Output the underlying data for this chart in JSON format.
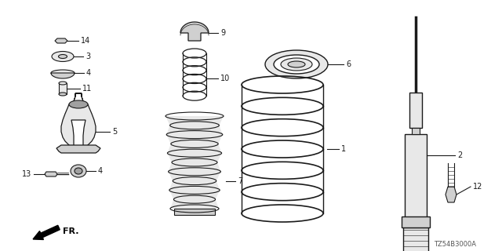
{
  "background_color": "#ffffff",
  "part_code": "TZ54B3000A",
  "line_color": "#1a1a1a",
  "gray_fill": "#d0d0d0",
  "light_fill": "#e8e8e8",
  "dark_fill": "#a0a0a0"
}
